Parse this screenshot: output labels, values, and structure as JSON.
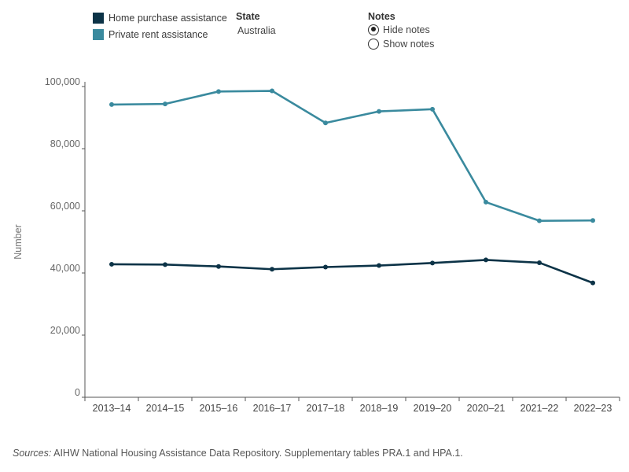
{
  "legend": {
    "items": [
      {
        "label": "Home purchase assistance",
        "color": "#0c3347"
      },
      {
        "label": "Private rent assistance",
        "color": "#3a8a9e"
      }
    ]
  },
  "filters": {
    "state_title": "State",
    "state_value": "Australia",
    "notes_title": "Notes",
    "notes_options": [
      {
        "label": "Hide notes",
        "selected": true
      },
      {
        "label": "Show notes",
        "selected": false
      }
    ]
  },
  "sources": {
    "prefix": "Sources:",
    "text": " AIHW National Housing Assistance Data Repository. Supplementary tables PRA.1 and HPA.1."
  },
  "chart_data": {
    "type": "line",
    "title": "",
    "xlabel": "",
    "ylabel": "Number",
    "ylim": [
      0,
      100000
    ],
    "yticks": [
      "0",
      "20,000",
      "40,000",
      "60,000",
      "80,000",
      "100,000"
    ],
    "categories": [
      "2013–14",
      "2014–15",
      "2015–16",
      "2016–17",
      "2017–18",
      "2018–19",
      "2019–20",
      "2020–21",
      "2021–22",
      "2022–23"
    ],
    "grid": false,
    "series": [
      {
        "name": "Private rent assistance",
        "color": "#3a8a9e",
        "values": [
          94200,
          94400,
          98400,
          98600,
          88300,
          92000,
          92700,
          62800,
          56800,
          56900
        ]
      },
      {
        "name": "Home purchase assistance",
        "color": "#0c3347",
        "values": [
          42800,
          42700,
          42100,
          41200,
          41900,
          42400,
          43200,
          44200,
          43300,
          36800
        ]
      }
    ]
  }
}
